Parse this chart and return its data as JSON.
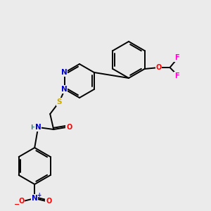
{
  "background_color": "#ebebeb",
  "bond_color": "#000000",
  "atom_colors": {
    "N": "#0000cc",
    "O": "#ff0000",
    "S": "#ccaa00",
    "F": "#ff00cc",
    "H": "#408080",
    "C": "#000000"
  },
  "figsize": [
    3.0,
    3.0
  ],
  "dpi": 100
}
